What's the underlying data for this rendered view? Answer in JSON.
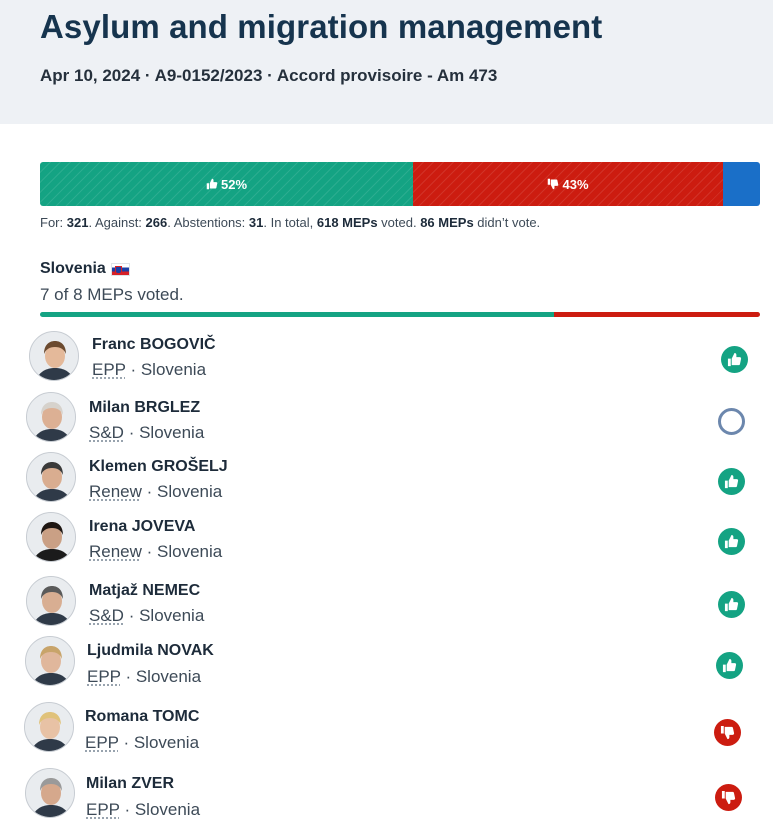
{
  "header": {
    "title": "Asylum and migration management",
    "subtitle": "Apr 10, 2024 · A9-0152/2023 · Accord provisoire - Am 473"
  },
  "result_bar": {
    "for_percent": 52,
    "against_percent": 43,
    "for_label": "52%",
    "against_label": "43%",
    "colors": {
      "for": "#14a383",
      "against": "#cc1c10",
      "abstention": "#1a6fc8"
    }
  },
  "stats": {
    "for_prefix": "For: ",
    "for_count": "321",
    "against_prefix": ". Against: ",
    "against_count": "266",
    "abst_prefix": ". Abstentions: ",
    "abst_count": "31",
    "total_prefix": ". In total, ",
    "voted": "618 MEPs",
    "voted_suffix": " voted. ",
    "not_voted": "86 MEPs",
    "not_voted_suffix": " didn’t vote."
  },
  "country": {
    "name": "Slovenia",
    "flag_icon": "slovenia-flag-icon",
    "summary": "7 of 8 MEPs voted.",
    "for_count": 5,
    "against_count": 2
  },
  "meps": [
    {
      "name": "Franc BOGOVIČ",
      "group": "EPP",
      "country": "Slovenia",
      "vote": "for",
      "vote_icon": "thumbs-up-icon"
    },
    {
      "name": "Milan BRGLEZ",
      "group": "S&D",
      "country": "Slovenia",
      "vote": "did-not-vote",
      "vote_icon": "circle-outline-icon"
    },
    {
      "name": "Klemen GROŠELJ",
      "group": "Renew",
      "country": "Slovenia",
      "vote": "for",
      "vote_icon": "thumbs-up-icon"
    },
    {
      "name": "Irena JOVEVA",
      "group": "Renew",
      "country": "Slovenia",
      "vote": "for",
      "vote_icon": "thumbs-up-icon"
    },
    {
      "name": "Matjaž NEMEC",
      "group": "S&D",
      "country": "Slovenia",
      "vote": "for",
      "vote_icon": "thumbs-up-icon"
    },
    {
      "name": "Ljudmila NOVAK",
      "group": "EPP",
      "country": "Slovenia",
      "vote": "for",
      "vote_icon": "thumbs-up-icon"
    },
    {
      "name": "Romana TOMC",
      "group": "EPP",
      "country": "Slovenia",
      "vote": "against",
      "vote_icon": "thumbs-down-icon"
    },
    {
      "name": "Milan ZVER",
      "group": "EPP",
      "country": "Slovenia",
      "vote": "against",
      "vote_icon": "thumbs-down-icon"
    }
  ]
}
